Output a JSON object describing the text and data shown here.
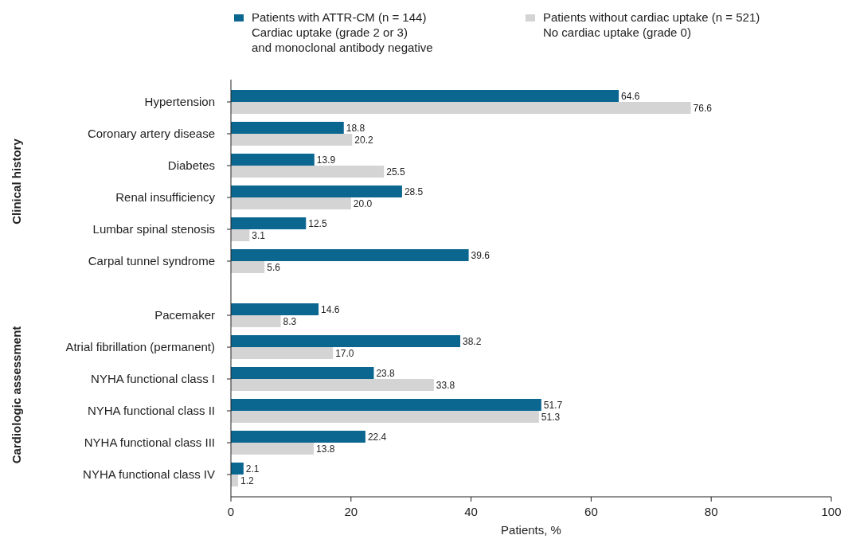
{
  "chart_data": {
    "type": "bar",
    "orientation": "horizontal",
    "xlabel": "Patients, %",
    "categories": [
      "Hypertension",
      "Coronary artery disease",
      "Diabetes",
      "Renal insufficiency",
      "Lumbar spinal stenosis",
      "Carpal tunnel syndrome",
      null,
      "Pacemaker",
      "Atrial fibrillation (permanent)",
      "NYHA functional class I",
      "NYHA functional class II",
      "NYHA functional class III",
      "NYHA functional class IV"
    ],
    "series": [
      {
        "name": "Patients with ATTR-CM (n = 144)\nCardiac uptake (grade 2 or 3)\nand monoclonal antibody negative",
        "color": "#0b6690",
        "values": [
          64.6,
          18.8,
          13.9,
          28.5,
          12.5,
          39.6,
          null,
          14.6,
          38.2,
          23.8,
          51.7,
          22.4,
          2.1
        ],
        "value_labels": [
          "64.6",
          "18.8",
          "13.9",
          "28.5",
          "12.5",
          "39.6",
          null,
          "14.6",
          "38.2",
          "23.8",
          "51.7",
          "22.4",
          "2.1"
        ]
      },
      {
        "name": "Patients without cardiac uptake (n = 521)\nNo cardiac uptake (grade 0)",
        "color": "#d4d4d4",
        "values": [
          76.6,
          20.2,
          25.5,
          20.0,
          3.1,
          5.6,
          null,
          8.3,
          17.0,
          33.8,
          51.3,
          13.8,
          1.2
        ],
        "value_labels": [
          "76.6",
          "20.2",
          "25.5",
          "20.0",
          "3.1",
          "5.6",
          null,
          "8.3",
          "17.0",
          "33.8",
          "51.3",
          "13.8",
          "1.2"
        ]
      }
    ],
    "xlim": [
      0,
      100
    ],
    "xticks": [
      0,
      20,
      40,
      60,
      80,
      100
    ],
    "legend": "top",
    "grid": false,
    "annotations": [
      "Clinical history",
      "Cardiologic assessment"
    ]
  }
}
